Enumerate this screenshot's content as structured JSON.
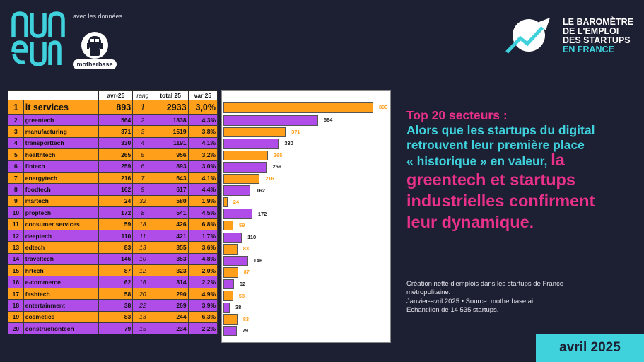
{
  "branding": {
    "numeum_logo": "numeum",
    "avec_text": "avec les données",
    "partner_logo": "motherbase",
    "barometer_lines": [
      "LE BAROMÈTRE",
      "DE L'EMPLOI",
      "DES STARTUPS",
      "EN FRANCE"
    ]
  },
  "table": {
    "headers": [
      "",
      "",
      "avr-25",
      "rang",
      "total 25",
      "var 25"
    ],
    "rows": [
      {
        "rank": "1",
        "name": "it services",
        "value": "893",
        "rang": "1",
        "total": "2933",
        "var": "3,0%",
        "color": "orange"
      },
      {
        "rank": "2",
        "name": "greentech",
        "value": "564",
        "rang": "2",
        "total": "1838",
        "var": "4,3%",
        "color": "purple"
      },
      {
        "rank": "3",
        "name": "manufacturing",
        "value": "371",
        "rang": "3",
        "total": "1519",
        "var": "3,8%",
        "color": "orange"
      },
      {
        "rank": "4",
        "name": "transporttech",
        "value": "330",
        "rang": "4",
        "total": "1191",
        "var": "4,1%",
        "color": "purple"
      },
      {
        "rank": "5",
        "name": "healthtech",
        "value": "265",
        "rang": "5",
        "total": "956",
        "var": "3,2%",
        "color": "orange"
      },
      {
        "rank": "6",
        "name": "fintech",
        "value": "259",
        "rang": "6",
        "total": "893",
        "var": "3,0%",
        "color": "purple"
      },
      {
        "rank": "7",
        "name": "energytech",
        "value": "216",
        "rang": "7",
        "total": "643",
        "var": "4,1%",
        "color": "orange"
      },
      {
        "rank": "8",
        "name": "foodtech",
        "value": "162",
        "rang": "9",
        "total": "617",
        "var": "4,4%",
        "color": "purple"
      },
      {
        "rank": "9",
        "name": "martech",
        "value": "24",
        "rang": "32",
        "total": "580",
        "var": "1,9%",
        "color": "orange"
      },
      {
        "rank": "10",
        "name": "proptech",
        "value": "172",
        "rang": "8",
        "total": "541",
        "var": "4,5%",
        "color": "purple"
      },
      {
        "rank": "11",
        "name": "consumer services",
        "value": "59",
        "rang": "18",
        "total": "426",
        "var": "6,8%",
        "color": "orange"
      },
      {
        "rank": "12",
        "name": "deeptech",
        "value": "110",
        "rang": "11",
        "total": "421",
        "var": "1,7%",
        "color": "purple"
      },
      {
        "rank": "13",
        "name": "edtech",
        "value": "83",
        "rang": "13",
        "total": "355",
        "var": "3,6%",
        "color": "orange"
      },
      {
        "rank": "14",
        "name": "traveltech",
        "value": "146",
        "rang": "10",
        "total": "353",
        "var": "4,8%",
        "color": "purple"
      },
      {
        "rank": "15",
        "name": "hrtech",
        "value": "87",
        "rang": "12",
        "total": "323",
        "var": "2,0%",
        "color": "orange"
      },
      {
        "rank": "16",
        "name": "e-commerce",
        "value": "62",
        "rang": "16",
        "total": "314",
        "var": "2,2%",
        "color": "purple"
      },
      {
        "rank": "17",
        "name": "fashtech",
        "value": "58",
        "rang": "20",
        "total": "290",
        "var": "4,9%",
        "color": "orange"
      },
      {
        "rank": "18",
        "name": "entertainment",
        "value": "38",
        "rang": "22",
        "total": "269",
        "var": "3,9%",
        "color": "purple"
      },
      {
        "rank": "19",
        "name": "cosmetics",
        "value": "83",
        "rang": "13",
        "total": "244",
        "var": "6,3%",
        "color": "orange"
      },
      {
        "rank": "20",
        "name": "constructiontech",
        "value": "79",
        "rang": "15",
        "total": "234",
        "var": "2,2%",
        "color": "purple"
      }
    ]
  },
  "chart_data": {
    "type": "bar",
    "orientation": "horizontal",
    "categories": [
      "it services",
      "greentech",
      "manufacturing",
      "transporttech",
      "healthtech",
      "fintech",
      "energytech",
      "foodtech",
      "martech",
      "proptech",
      "consumer services",
      "deeptech",
      "edtech",
      "traveltech",
      "hrtech",
      "e-commerce",
      "fashtech",
      "entertainment",
      "cosmetics",
      "constructiontech"
    ],
    "values": [
      893,
      564,
      371,
      330,
      265,
      259,
      216,
      162,
      24,
      172,
      59,
      110,
      83,
      146,
      87,
      62,
      58,
      38,
      83,
      79
    ],
    "colors": [
      "#ff9f1a",
      "#b04ce8"
    ]
  },
  "headline": {
    "line1": "Top 20 secteurs :",
    "line2": "Alors que les startups du digital",
    "line3": "retrouvent leur première place",
    "line4a": "« historique » en valeur, ",
    "line4b": "la",
    "line5": "greentech et startups",
    "line6": "industrielles confirment",
    "line7": "leur dynamique."
  },
  "note": {
    "line1": "Création nette d'emplois dans les startups de France",
    "line2": "métropolitaine.",
    "line3": "Janvier-avril 2025 • Source: motherbase.ai",
    "line4": "Echantillon de 14 535 startups."
  },
  "date_badge": "avril 2025",
  "colors": {
    "background": "#1d1f33",
    "orange": "#ff9f1a",
    "purple": "#b04ce8",
    "cyan": "#3fd1dc",
    "pink": "#e8318a"
  }
}
